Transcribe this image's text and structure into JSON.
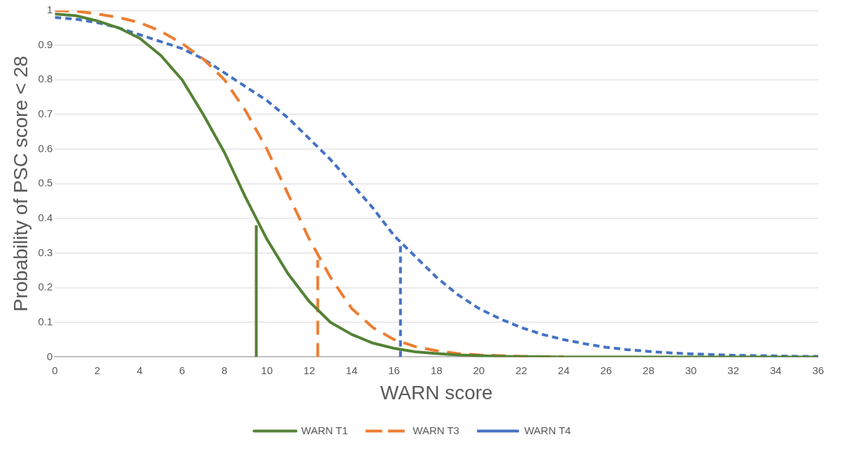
{
  "chart_data": {
    "type": "line",
    "xlabel": "WARN score",
    "ylabel": "Probability of PSC score < 28",
    "x": [
      0,
      1,
      2,
      3,
      4,
      5,
      6,
      7,
      8,
      9,
      10,
      11,
      12,
      13,
      14,
      15,
      16,
      17,
      18,
      19,
      20,
      21,
      22,
      23,
      24,
      25,
      26,
      27,
      28,
      29,
      30,
      31,
      32,
      33,
      34,
      35,
      36
    ],
    "series": [
      {
        "name": "WARN T1",
        "color": "#548235",
        "line_style": "solid",
        "values": [
          0.99,
          0.985,
          0.97,
          0.95,
          0.92,
          0.87,
          0.8,
          0.7,
          0.59,
          0.46,
          0.34,
          0.24,
          0.16,
          0.1,
          0.065,
          0.04,
          0.025,
          0.015,
          0.01,
          0.006,
          0.004,
          0.002,
          0.001,
          0.001,
          0,
          0,
          0,
          0,
          0,
          0,
          0,
          0,
          0,
          0,
          0,
          0,
          0
        ]
      },
      {
        "name": "WARN T3",
        "color": "#ed7d31",
        "line_style": "dashed",
        "values": [
          1,
          0.998,
          0.99,
          0.98,
          0.965,
          0.94,
          0.905,
          0.86,
          0.8,
          0.71,
          0.6,
          0.47,
          0.34,
          0.23,
          0.14,
          0.085,
          0.05,
          0.03,
          0.018,
          0.01,
          0.006,
          0.004,
          0.002,
          0.001,
          0.001,
          null,
          null,
          null,
          null,
          null,
          null,
          null,
          null,
          null,
          null,
          null,
          null
        ]
      },
      {
        "name": "WARN T4",
        "color": "#4472c4",
        "line_style": "dashed",
        "values": [
          0.98,
          0.975,
          0.965,
          0.95,
          0.93,
          0.91,
          0.89,
          0.86,
          0.82,
          0.78,
          0.74,
          0.69,
          0.63,
          0.57,
          0.5,
          0.43,
          0.35,
          0.29,
          0.23,
          0.18,
          0.14,
          0.11,
          0.085,
          0.065,
          0.05,
          0.038,
          0.028,
          0.021,
          0.016,
          0.012,
          0.009,
          0.007,
          0.005,
          0.004,
          0.003,
          0.002,
          0.002
        ]
      },
      {
        "color": "#548235",
        "line_style": "solid",
        "x": [
          9.5,
          9.5
        ],
        "values": [
          0,
          0.38
        ]
      },
      {
        "color": "#ed7d31",
        "line_style": "dashed",
        "x": [
          12.4,
          12.4
        ],
        "values": [
          0,
          0.28
        ]
      },
      {
        "color": "#4472c4",
        "line_style": "dashed",
        "x": [
          16.3,
          16.3
        ],
        "values": [
          0,
          0.32
        ]
      }
    ],
    "xlim": [
      0,
      36
    ],
    "xticks": [
      0,
      2,
      4,
      6,
      8,
      10,
      12,
      14,
      16,
      18,
      20,
      22,
      24,
      26,
      28,
      30,
      32,
      34,
      36
    ],
    "ylim": [
      0,
      1
    ],
    "yticks": [
      0,
      0.1,
      0.2,
      0.3,
      0.4,
      0.5,
      0.6,
      0.7,
      0.8,
      0.9,
      1
    ],
    "grid": "y",
    "legend": "bottom",
    "marker": "none"
  }
}
